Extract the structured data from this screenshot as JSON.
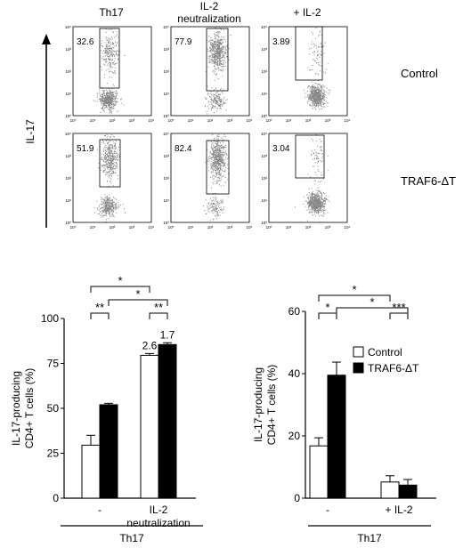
{
  "flow": {
    "columns": [
      "Th17",
      "IL-2\nneutralization",
      "+ IL-2"
    ],
    "rows": [
      "Control",
      "TRAF6-ΔT"
    ],
    "y_axis_label": "IL-17",
    "gate_percentages": [
      [
        32.6,
        77.9,
        3.89
      ],
      [
        51.9,
        82.4,
        3.04
      ]
    ],
    "axis_ticks": [
      "10⁰",
      "10¹",
      "10²",
      "10³",
      "10⁴"
    ]
  },
  "chart_data": [
    {
      "type": "bar",
      "title": "",
      "ylabel": "IL-17-producing\nCD4+ T cells (%)",
      "xlabel": "Th17",
      "categories": [
        "-",
        "IL-2\nneutralization"
      ],
      "ylim": [
        0,
        100
      ],
      "yticks": [
        0,
        25,
        50,
        75,
        100
      ],
      "series": [
        {
          "name": "Control",
          "color": "#ffffff",
          "values": [
            29.5,
            79.5
          ],
          "errors": [
            5.5,
            1.0
          ]
        },
        {
          "name": "TRAF6-ΔT",
          "color": "#000000",
          "values": [
            52.0,
            85.5
          ],
          "errors": [
            0.8,
            1.0
          ]
        }
      ],
      "bar_labels": [
        "",
        "",
        "2.6",
        "1.7"
      ],
      "significance": [
        {
          "from": 0,
          "to": 1,
          "text": "**"
        },
        {
          "from": 2,
          "to": 3,
          "text": "**"
        },
        {
          "from": 0,
          "to": 2,
          "text": "*"
        },
        {
          "from": 1,
          "to": 3,
          "text": "*"
        }
      ],
      "legend": false
    },
    {
      "type": "bar",
      "title": "",
      "ylabel": "IL-17-producing\nCD4+ T cells (%)",
      "xlabel": "Th17",
      "categories": [
        "-",
        "+ IL-2"
      ],
      "ylim": [
        0,
        60
      ],
      "yticks": [
        0,
        20,
        40,
        60
      ],
      "series": [
        {
          "name": "Control",
          "color": "#ffffff",
          "values": [
            16.8,
            5.2
          ],
          "errors": [
            2.6,
            2.0
          ]
        },
        {
          "name": "TRAF6-ΔT",
          "color": "#000000",
          "values": [
            39.5,
            4.2
          ],
          "errors": [
            4.2,
            1.8
          ]
        }
      ],
      "bar_labels": [
        "",
        "",
        "",
        ""
      ],
      "significance": [
        {
          "from": 0,
          "to": 1,
          "text": "*"
        },
        {
          "from": 2,
          "to": 3,
          "text": "***"
        },
        {
          "from": 0,
          "to": 2,
          "text": "*"
        },
        {
          "from": 1,
          "to": 3,
          "text": "*"
        }
      ],
      "legend": true,
      "legend_position": "right"
    }
  ]
}
